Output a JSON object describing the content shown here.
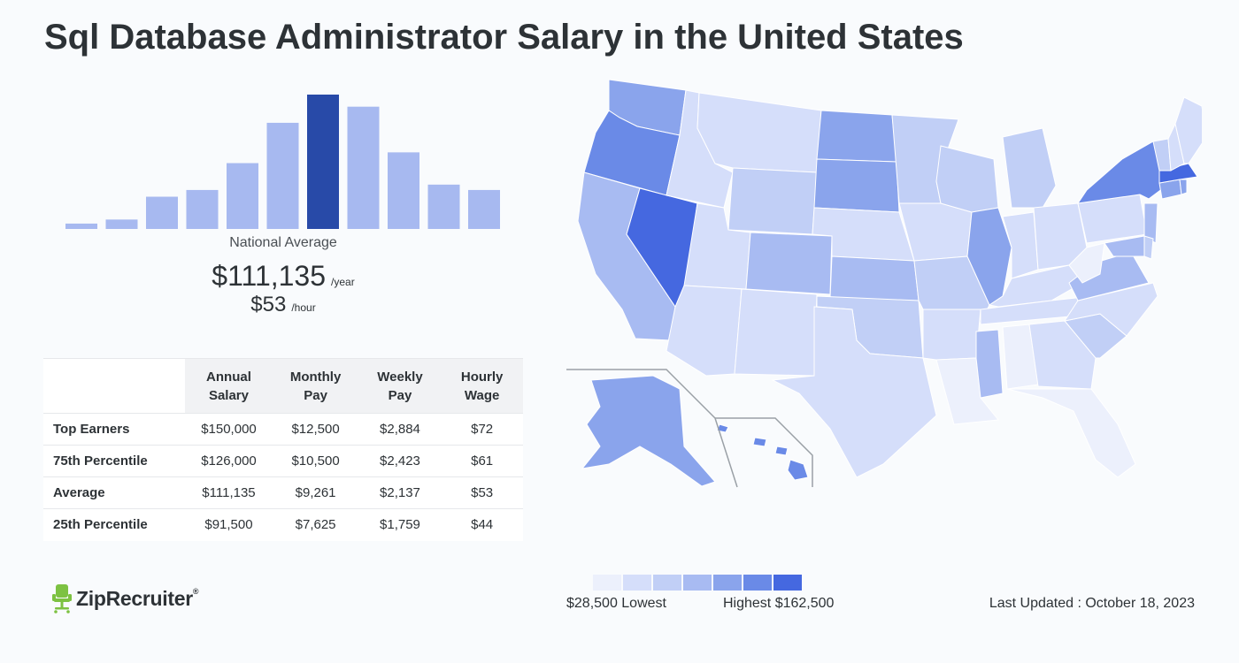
{
  "page": {
    "title": "Sql Database Administrator Salary in the United States"
  },
  "summary": {
    "label": "National Average",
    "annual": "$111,135",
    "annual_unit": "/year",
    "hourly": "$53",
    "hourly_unit": "/hour"
  },
  "chart_data": [
    {
      "type": "bar",
      "title": "",
      "categories": [
        "1",
        "2",
        "3",
        "4",
        "5",
        "6",
        "7",
        "8",
        "9",
        "10",
        "11"
      ],
      "values": [
        4,
        7,
        24,
        29,
        49,
        79,
        100,
        91,
        57,
        33,
        29
      ],
      "highlight_index": 6,
      "colors": {
        "bar": "#a7b9f0",
        "highlight": "#284aa8"
      },
      "ylim": [
        0,
        100
      ],
      "grid": false
    },
    {
      "type": "heatmap",
      "title": "",
      "geography": "United States",
      "legend": {
        "low_label": "$28,500 Lowest",
        "high_label": "Highest $162,500",
        "colors": [
          "#ecf0fc",
          "#d5defa",
          "#c1cff6",
          "#a8bbf2",
          "#8aa4ec",
          "#6a8ae7",
          "#4568e0"
        ]
      },
      "regions": [
        {
          "state": "WA",
          "level": 5
        },
        {
          "state": "OR",
          "level": 6
        },
        {
          "state": "CA",
          "level": 4
        },
        {
          "state": "NV",
          "level": 7
        },
        {
          "state": "ID",
          "level": 2
        },
        {
          "state": "MT",
          "level": 2
        },
        {
          "state": "WY",
          "level": 3
        },
        {
          "state": "UT",
          "level": 2
        },
        {
          "state": "AZ",
          "level": 2
        },
        {
          "state": "CO",
          "level": 4
        },
        {
          "state": "NM",
          "level": 2
        },
        {
          "state": "ND",
          "level": 5
        },
        {
          "state": "SD",
          "level": 5
        },
        {
          "state": "NE",
          "level": 2
        },
        {
          "state": "KS",
          "level": 4
        },
        {
          "state": "OK",
          "level": 3
        },
        {
          "state": "TX",
          "level": 2
        },
        {
          "state": "MN",
          "level": 3
        },
        {
          "state": "IA",
          "level": 2
        },
        {
          "state": "MO",
          "level": 3
        },
        {
          "state": "AR",
          "level": 2
        },
        {
          "state": "LA",
          "level": 1
        },
        {
          "state": "WI",
          "level": 3
        },
        {
          "state": "IL",
          "level": 5
        },
        {
          "state": "MI",
          "level": 3
        },
        {
          "state": "IN",
          "level": 2
        },
        {
          "state": "OH",
          "level": 2
        },
        {
          "state": "KY",
          "level": 2
        },
        {
          "state": "TN",
          "level": 2
        },
        {
          "state": "MS",
          "level": 4
        },
        {
          "state": "AL",
          "level": 1
        },
        {
          "state": "GA",
          "level": 2
        },
        {
          "state": "FL",
          "level": 1
        },
        {
          "state": "SC",
          "level": 3
        },
        {
          "state": "NC",
          "level": 2
        },
        {
          "state": "VA",
          "level": 4
        },
        {
          "state": "WV",
          "level": 1
        },
        {
          "state": "PA",
          "level": 2
        },
        {
          "state": "NY",
          "level": 6
        },
        {
          "state": "NJ",
          "level": 4
        },
        {
          "state": "MD",
          "level": 4
        },
        {
          "state": "DE",
          "level": 3
        },
        {
          "state": "CT",
          "level": 5
        },
        {
          "state": "MA",
          "level": 7
        },
        {
          "state": "RI",
          "level": 5
        },
        {
          "state": "VT",
          "level": 3
        },
        {
          "state": "NH",
          "level": 2
        },
        {
          "state": "ME",
          "level": 2
        },
        {
          "state": "AK",
          "level": 5
        },
        {
          "state": "HI",
          "level": 6
        }
      ]
    }
  ],
  "table": {
    "headers": [
      "Annual Salary",
      "Monthly Pay",
      "Weekly Pay",
      "Hourly Wage"
    ],
    "rows": [
      {
        "label": "Top Earners",
        "values": [
          "$150,000",
          "$12,500",
          "$2,884",
          "$72"
        ]
      },
      {
        "label": "75th Percentile",
        "values": [
          "$126,000",
          "$10,500",
          "$2,423",
          "$61"
        ]
      },
      {
        "label": "Average",
        "values": [
          "$111,135",
          "$9,261",
          "$2,137",
          "$53"
        ]
      },
      {
        "label": "25th Percentile",
        "values": [
          "$91,500",
          "$7,625",
          "$1,759",
          "$44"
        ]
      }
    ]
  },
  "footer": {
    "brand": "ZipRecruiter",
    "brand_mark": "®",
    "updated": "Last Updated : October 18, 2023"
  }
}
